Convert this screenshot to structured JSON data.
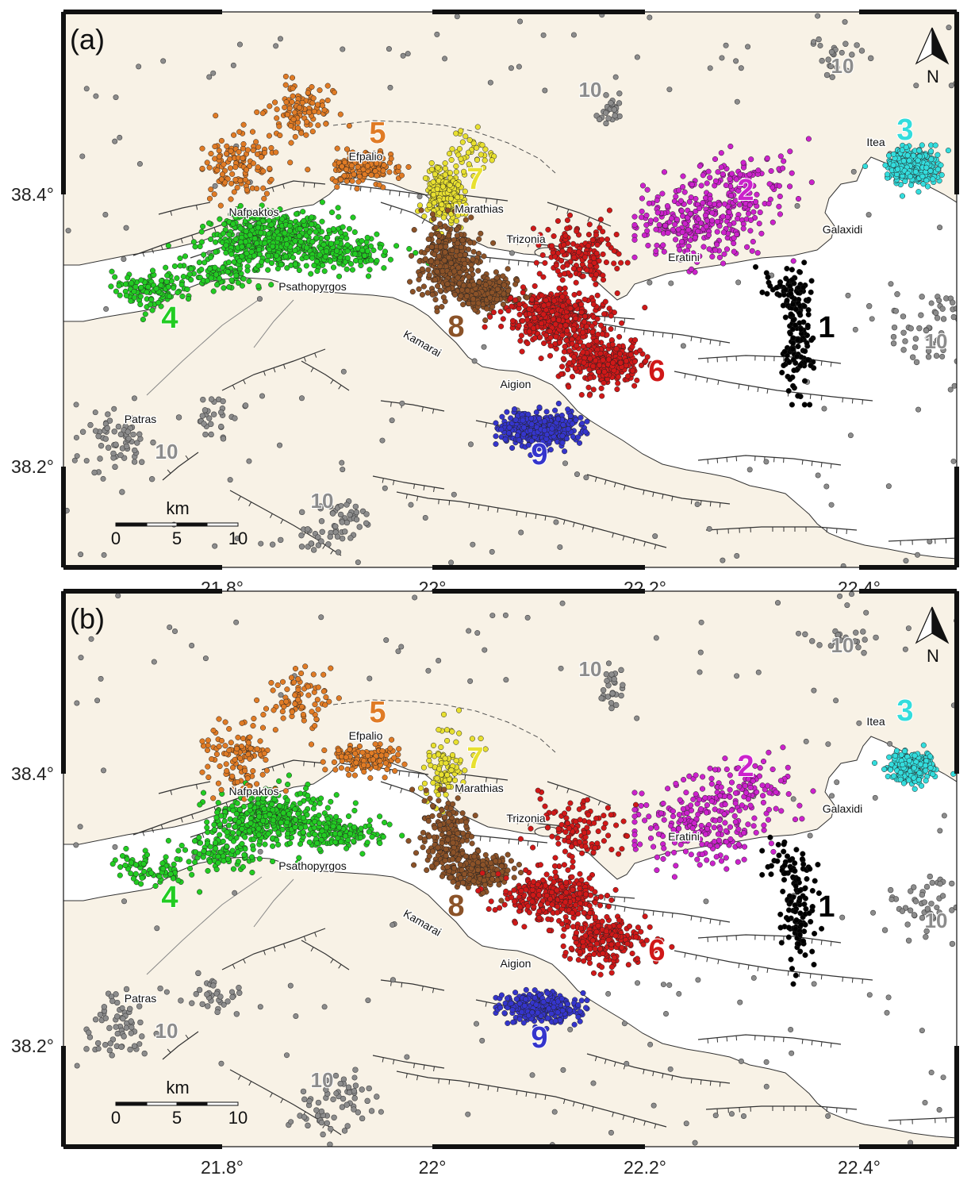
{
  "map": {
    "axis": {
      "x_ticks": [
        "21.8°",
        "22°",
        "22.2°",
        "22.4°"
      ],
      "y_ticks": [
        "38.4°",
        "38.2°"
      ]
    },
    "north_label": "N",
    "scale": {
      "unit": "km",
      "ticks": [
        "0",
        "5",
        "10"
      ]
    },
    "places": [
      {
        "id": "nafpaktos",
        "name": "Nafpaktos"
      },
      {
        "id": "efpalio",
        "name": "Efpalio"
      },
      {
        "id": "marathias",
        "name": "Marathias"
      },
      {
        "id": "trizonia",
        "name": "Trizonia"
      },
      {
        "id": "psathopyrgos",
        "name": "Psathopyrgos"
      },
      {
        "id": "kamarai",
        "name": "Kamarai"
      },
      {
        "id": "aigion",
        "name": "Aigion"
      },
      {
        "id": "eratini",
        "name": "Eratini"
      },
      {
        "id": "galaxidi",
        "name": "Galaxidi"
      },
      {
        "id": "itea",
        "name": "Itea"
      },
      {
        "id": "patras",
        "name": "Patras"
      }
    ],
    "clusters": [
      {
        "id": "1",
        "label": "1",
        "color": "#000000"
      },
      {
        "id": "2",
        "label": "2",
        "color": "#cc22cc"
      },
      {
        "id": "3",
        "label": "3",
        "color": "#33dddd"
      },
      {
        "id": "4",
        "label": "4",
        "color": "#22cc22"
      },
      {
        "id": "5",
        "label": "5",
        "color": "#e07b25"
      },
      {
        "id": "6",
        "label": "6",
        "color": "#d01818"
      },
      {
        "id": "7",
        "label": "7",
        "color": "#e8e030"
      },
      {
        "id": "8",
        "label": "8",
        "color": "#8b5228"
      },
      {
        "id": "9",
        "label": "9",
        "color": "#3535cc"
      }
    ],
    "background_cluster": {
      "label": "10",
      "color": "#8c8c8c"
    },
    "colors": {
      "land": "#f8f2e6",
      "sea": "#ffffff",
      "fault": "#333333"
    }
  },
  "panels": [
    {
      "id": "a",
      "label": "(a)"
    },
    {
      "id": "b",
      "label": "(b)"
    }
  ]
}
